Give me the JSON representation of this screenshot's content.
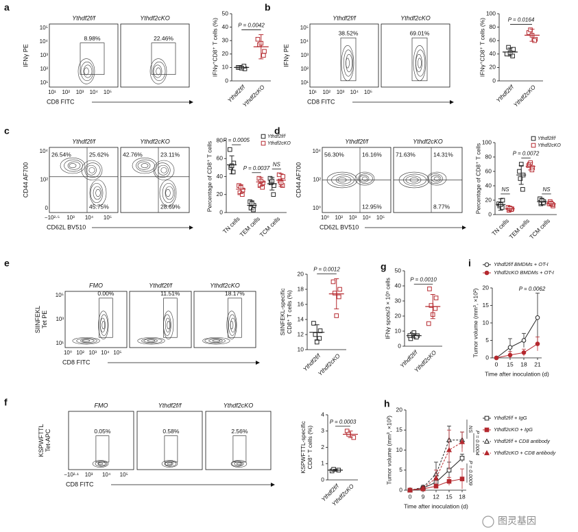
{
  "flow_panels": [
    {
      "label": "a",
      "ylabel": "IFNγ PE",
      "xlabel": "CD8 FITC",
      "gate": "rect",
      "yticks": [
        "10⁵",
        "10⁴",
        "10³",
        "10²",
        "10¹"
      ],
      "xticks": [
        "10¹",
        "10²",
        "10³",
        "10⁴",
        "10⁵"
      ],
      "plots": [
        {
          "title": "Ythdf2f/f",
          "gates": [
            "8.98%"
          ]
        },
        {
          "title": "Ythdf2cKO",
          "gates": [
            "22.46%"
          ]
        }
      ]
    },
    {
      "label": "b",
      "ylabel": "IFNγ PE",
      "xlabel": "CD8 FITC",
      "gate": "rect",
      "yticks": [
        "10⁵",
        "10⁴",
        "10³",
        "10²",
        "10¹"
      ],
      "xticks": [
        "10¹",
        "10²",
        "10³",
        "10⁴",
        "10⁵"
      ],
      "plots": [
        {
          "title": "Ythdf2f/f",
          "gates": [
            "38.52%"
          ]
        },
        {
          "title": "Ythdf2cKO",
          "gates": [
            "69.01%"
          ]
        }
      ]
    },
    {
      "label": "c",
      "ylabel": "CD44 AF700",
      "xlabel": "CD62L BV510",
      "gate": "quadrant",
      "yticks": [
        "10⁴",
        "10²",
        "0"
      ],
      "xticks": [
        "−10²·⁵",
        "10³",
        "10⁴",
        "10⁵"
      ],
      "plots": [
        {
          "title": "Ythdf2f/f",
          "gates": [
            "26.54%",
            "25.62%",
            "45.75%"
          ]
        },
        {
          "title": "Ythdf2cKO",
          "gates": [
            "42.76%",
            "23.11%",
            "28.69%"
          ]
        }
      ]
    },
    {
      "label": "d",
      "ylabel": "CD44 AF700",
      "xlabel": "CD62L BV510",
      "gate": "quadrant",
      "yticks": [
        "10⁴",
        "10²",
        "10⁰"
      ],
      "xticks": [
        "10⁰",
        "10²",
        "10³",
        "10⁴",
        "10⁵"
      ],
      "plots": [
        {
          "title": "Ythdf2f/f",
          "gates": [
            "56.30%",
            "16.16%",
            "12.95%"
          ]
        },
        {
          "title": "Ythdf2cKO",
          "gates": [
            "71.63%",
            "14.31%",
            "8.77%"
          ]
        }
      ]
    },
    {
      "label": "e",
      "ylabel": [
        "SIINFEKL",
        "Tet PE"
      ],
      "xlabel": "CD8 FITC",
      "gate": "rect",
      "yticks": [
        "10⁵",
        "10³",
        "10¹"
      ],
      "xticks": [
        "10⁰",
        "10²",
        "10³",
        "10⁴",
        "10⁵"
      ],
      "plots": [
        {
          "title": "FMO",
          "gates": [
            "0.00%"
          ]
        },
        {
          "title": "Ythdf2f/f",
          "gates": [
            "11.51%"
          ]
        },
        {
          "title": "Ythdf2cKO",
          "gates": [
            "18.17%"
          ]
        }
      ]
    },
    {
      "label": "f",
      "ylabel": [
        "KSPWFTTL",
        "Tet-APC"
      ],
      "xlabel": "CD8 FITC",
      "gate": "rect",
      "xticks": [
        "−10²·¹",
        "10³",
        "10⁴",
        "10⁵"
      ],
      "plots": [
        {
          "title": "FMO",
          "gates": [
            "0.05%"
          ]
        },
        {
          "title": "Ythdf2f/f",
          "gates": [
            "0.58%"
          ]
        },
        {
          "title": "Ythdf2cKO",
          "gates": [
            "2.56%"
          ]
        }
      ]
    }
  ],
  "chart_data": [
    {
      "type": "dot",
      "ylabel": "IFNγ⁺CD8⁺ T cells (%)",
      "categories": [
        "Ythdf2f/f",
        "Ythdf2cKO"
      ],
      "colors": [
        "#222222",
        "#b5282e"
      ],
      "points": [
        [
          10,
          9,
          10,
          11,
          9.5
        ],
        [
          31,
          22,
          27,
          19,
          28
        ]
      ],
      "means": [
        10,
        25.4
      ],
      "sds": [
        1,
        9
      ],
      "ylim": [
        0,
        50
      ],
      "yticks": [
        0,
        10,
        20,
        30,
        40,
        50
      ],
      "annotations": [
        "P = 0.0042"
      ]
    },
    {
      "type": "dot",
      "ylabel": "IFNγ⁺CD8⁺ T cells (%)",
      "categories": [
        "Ythdf2f/f",
        "Ythdf2cKO"
      ],
      "colors": [
        "#222222",
        "#b5282e"
      ],
      "points": [
        [
          40,
          47,
          50,
          37,
          42
        ],
        [
          72,
          62,
          76,
          60,
          68
        ]
      ],
      "means": [
        43,
        68
      ],
      "sds": [
        6,
        9
      ],
      "ylim": [
        0,
        100
      ],
      "yticks": [
        0,
        20,
        40,
        60,
        80,
        100
      ],
      "annotations": [
        "P = 0.0164"
      ]
    },
    {
      "type": "dot",
      "ylabel": "Percentage of CD8⁺ T cells",
      "categories": [
        "TN cells",
        "TEM cells",
        "TCM cells"
      ],
      "legend": "top-right",
      "series": [
        {
          "name": "Ythdf2f/f",
          "color": "#222222",
          "points": [
            [
              70,
              55,
              50,
              45,
              52
            ],
            [
              12,
              8,
              5,
              3,
              10
            ],
            [
              38,
              30,
              33,
              20,
              35
            ]
          ],
          "means": [
            53,
            8,
            32
          ],
          "sds": [
            10,
            5,
            7
          ]
        },
        {
          "name": "Ythdf2cKO",
          "color": "#b5282e",
          "points": [
            [
              30,
              25,
              22,
              20,
              28
            ],
            [
              38,
              33,
              30,
              28,
              35
            ],
            [
              42,
              40,
              35,
              30,
              33
            ]
          ],
          "means": [
            26,
            34,
            36
          ],
          "sds": [
            5,
            5,
            7
          ]
        }
      ],
      "ylim": [
        0,
        80
      ],
      "yticks": [
        0,
        20,
        40,
        60,
        80
      ],
      "annotations": [
        "P = 0.0005",
        "P = 0.0037",
        "NS"
      ]
    },
    {
      "type": "dot",
      "ylabel": "Percentage of CD8⁺ T cells",
      "categories": [
        "TN cells",
        "TEM cells",
        "TCM cells"
      ],
      "legend": "top-right",
      "series": [
        {
          "name": "Ythdf2f/f",
          "color": "#222222",
          "points": [
            [
              15,
              20,
              12,
              10,
              14
            ],
            [
              60,
              55,
              50,
              35,
              70
            ],
            [
              22,
              18,
              15,
              16,
              20
            ]
          ],
          "means": [
            14,
            55,
            18
          ],
          "sds": [
            8,
            13,
            4
          ]
        },
        {
          "name": "Ythdf2cKO",
          "color": "#b5282e",
          "points": [
            [
              10,
              8,
              6,
              7,
              9
            ],
            [
              68,
              65,
              70,
              62,
              72
            ],
            [
              15,
              12,
              18,
              14,
              16
            ]
          ],
          "means": [
            8,
            67,
            15
          ],
          "sds": [
            3,
            5,
            3
          ]
        }
      ],
      "ylim": [
        0,
        100
      ],
      "yticks": [
        0,
        20,
        40,
        60,
        80,
        100
      ],
      "annotations": [
        "NS",
        "P = 0.0072",
        "NS"
      ]
    },
    {
      "type": "dot",
      "ylabel": [
        "SIINFEKL-specific",
        "CD8⁺ T cells (%)"
      ],
      "categories": [
        "Ythdf2f/f",
        "Ythdf2cKO"
      ],
      "colors": [
        "#222222",
        "#b5282e"
      ],
      "points": [
        [
          13.5,
          12.5,
          12,
          11.5,
          11
        ],
        [
          19,
          18,
          17.5,
          17,
          14.5
        ]
      ],
      "means": [
        12.3,
        17.4
      ],
      "sds": [
        1,
        2
      ],
      "ylim": [
        10,
        20
      ],
      "yticks": [
        10,
        12,
        14,
        16,
        18,
        20
      ],
      "annotations": [
        "P = 0.0012"
      ]
    },
    {
      "type": "dot",
      "label": "g",
      "ylabel": "IFNγ spots/3 × 10⁵ cells",
      "categories": [
        "Ythdf2f/f",
        "Ythdf2cKO"
      ],
      "colors": [
        "#222222",
        "#b5282e"
      ],
      "points": [
        [
          5,
          7,
          8,
          6,
          9,
          7
        ],
        [
          38,
          32,
          27,
          25,
          21,
          15
        ]
      ],
      "means": [
        7,
        26.3
      ],
      "sds": [
        1.5,
        8
      ],
      "ylim": [
        0,
        50
      ],
      "yticks": [
        0,
        10,
        20,
        30,
        40,
        50
      ],
      "annotations": [
        "P = 0.0010"
      ]
    },
    {
      "type": "line",
      "label": "i",
      "ylabel": "Tumor volume (mm³, ×10²)",
      "xlabel": "Time after inoculation (d)",
      "legend": "above",
      "categories": [
        "0",
        "15",
        "18",
        "21"
      ],
      "series": [
        {
          "name": "Ythdf2f/f BMDMs + OT-I",
          "color": "#222222",
          "marker": "circle",
          "filled": false,
          "values": [
            0,
            3,
            5,
            11.5
          ],
          "errors": [
            0,
            2.5,
            2,
            7
          ]
        },
        {
          "name": "Ythdf2cKO BMDMs + OT-I",
          "color": "#b5282e",
          "marker": "circle",
          "filled": true,
          "values": [
            0,
            0.8,
            1.5,
            4
          ],
          "errors": [
            0,
            1,
            1,
            2
          ]
        }
      ],
      "ylim": [
        0,
        20
      ],
      "yticks": [
        0,
        5,
        10,
        15,
        20
      ],
      "annotations": [
        "P = 0.0062"
      ]
    },
    {
      "type": "dot",
      "ylabel": [
        "KSPWFTTL-specific",
        "CD8⁺ T cells (%)"
      ],
      "categories": [
        "Ythdf2f/f",
        "Ythdf2cKO"
      ],
      "colors": [
        "#222222",
        "#b5282e"
      ],
      "points": [
        [
          0.55,
          0.6,
          0.65
        ],
        [
          3.0,
          2.6,
          2.8
        ]
      ],
      "means": [
        0.6,
        2.8
      ],
      "sds": [
        0.05,
        0.2
      ],
      "ylim": [
        0,
        4
      ],
      "yticks": [
        0,
        1,
        2,
        3,
        4
      ],
      "annotations": [
        "P = 0.0003"
      ]
    },
    {
      "type": "line",
      "label": "h",
      "ylabel": "Tumor volume (mm³, ×10²)",
      "xlabel": "Time after inoculation (d)",
      "legend": "right",
      "categories": [
        "0",
        "9",
        "12",
        "15",
        "18"
      ],
      "series": [
        {
          "name": "Ythdf2f/f + IgG",
          "color": "#222222",
          "marker": "square",
          "filled": false,
          "dash": false,
          "values": [
            0,
            0.5,
            2,
            5,
            8
          ],
          "errors": [
            0,
            0.3,
            1,
            2,
            1
          ]
        },
        {
          "name": "Ythdf2cKO + IgG",
          "color": "#b5282e",
          "marker": "square",
          "filled": true,
          "dash": false,
          "values": [
            0,
            0.3,
            1,
            2.2,
            2.8
          ],
          "errors": [
            0,
            0.2,
            0.5,
            1,
            2.5
          ]
        },
        {
          "name": "Ythdf2f/f + CD8 antibody",
          "color": "#222222",
          "marker": "triangle",
          "filled": false,
          "dash": true,
          "values": [
            0,
            0.7,
            4,
            12.5,
            12.5
          ],
          "errors": [
            0,
            0.5,
            3,
            3.5,
            2
          ]
        },
        {
          "name": "Ythdf2cKO + CD8 antibody",
          "color": "#b5282e",
          "marker": "triangle",
          "filled": true,
          "dash": true,
          "values": [
            0,
            0.5,
            3,
            10,
            12
          ],
          "errors": [
            0,
            0.3,
            2,
            5,
            2.5
          ]
        }
      ],
      "ylim": [
        0,
        20
      ],
      "yticks": [
        0,
        5,
        10,
        15,
        20
      ],
      "annotations": [
        "NS",
        "P = 0.0004",
        "P = 0.0009"
      ]
    }
  ],
  "watermark": "图灵基因"
}
